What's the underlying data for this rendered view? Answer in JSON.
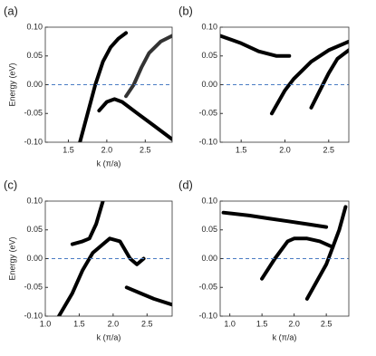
{
  "chart_data": [
    {
      "type": "line",
      "title": "(a)",
      "x_label": "k (π/a)",
      "y_label": "Energy (eV)",
      "xlim": [
        1.2,
        2.85
      ],
      "ylim": [
        -0.1,
        0.1
      ],
      "xticks": [
        {
          "value": 1.5,
          "label": "1.5"
        },
        {
          "value": 2,
          "label": "2.0"
        },
        {
          "value": 2.5,
          "label": "2.5"
        }
      ],
      "yticks": [
        {
          "value": -0.1,
          "label": "-0.10"
        },
        {
          "value": -0.05,
          "label": "-0.05"
        },
        {
          "value": 0,
          "label": "0.00"
        },
        {
          "value": 0.05,
          "label": "0.05"
        },
        {
          "value": 0.1,
          "label": "0.10"
        }
      ],
      "hline": 0,
      "hline_color": "#4a7cc4",
      "series": [
        {
          "color": "#000000",
          "x": [
            1.65,
            1.75,
            1.85,
            1.95,
            2.05,
            2.15,
            2.25
          ],
          "values": [
            -0.1,
            -0.05,
            0.0,
            0.04,
            0.065,
            0.08,
            0.09
          ]
        },
        {
          "color": "#000000",
          "x": [
            1.9,
            2.0,
            2.1,
            2.2,
            2.4,
            2.6,
            2.85
          ],
          "values": [
            -0.045,
            -0.03,
            -0.025,
            -0.03,
            -0.05,
            -0.07,
            -0.095
          ]
        },
        {
          "color": "#333333",
          "x": [
            2.25,
            2.35,
            2.45,
            2.55,
            2.7,
            2.85
          ],
          "values": [
            -0.02,
            0.0,
            0.03,
            0.055,
            0.075,
            0.085
          ]
        }
      ]
    },
    {
      "type": "line",
      "title": "(b)",
      "xlim": [
        1.26,
        2.73
      ],
      "ylim": [
        -0.1,
        0.1
      ],
      "xticks": [
        {
          "value": 1.5,
          "label": "1.5"
        },
        {
          "value": 2,
          "label": "2.0"
        },
        {
          "value": 2.5,
          "label": "2.5"
        }
      ],
      "yticks": [
        {
          "value": -0.1,
          "label": "-0.10"
        },
        {
          "value": -0.05,
          "label": "-0.05"
        },
        {
          "value": 0,
          "label": "0.00"
        },
        {
          "value": 0.05,
          "label": "0.05"
        },
        {
          "value": 0.1,
          "label": "0.10"
        }
      ],
      "hline": 0,
      "hline_color": "#4a7cc4",
      "series": [
        {
          "color": "#000000",
          "x": [
            1.26,
            1.5,
            1.7,
            1.9,
            2.05
          ],
          "values": [
            0.085,
            0.072,
            0.058,
            0.05,
            0.05
          ]
        },
        {
          "color": "#000000",
          "x": [
            1.85,
            2.0,
            2.1,
            2.3,
            2.5,
            2.73
          ],
          "values": [
            -0.05,
            -0.01,
            0.01,
            0.04,
            0.06,
            0.075
          ]
        },
        {
          "color": "#000000",
          "x": [
            2.3,
            2.4,
            2.5,
            2.6,
            2.73
          ],
          "values": [
            -0.04,
            -0.01,
            0.02,
            0.045,
            0.06
          ]
        }
      ]
    },
    {
      "type": "line",
      "title": "(c)",
      "x_label": "k (π/a)",
      "y_label": "Energy (eV)",
      "xlim": [
        1.0,
        2.87
      ],
      "ylim": [
        -0.1,
        0.1
      ],
      "xticks": [
        {
          "value": 1,
          "label": "1.0"
        },
        {
          "value": 1.5,
          "label": "1.5"
        },
        {
          "value": 2,
          "label": "2.0"
        },
        {
          "value": 2.5,
          "label": "2.5"
        }
      ],
      "yticks": [
        {
          "value": -0.1,
          "label": "-0.10"
        },
        {
          "value": -0.05,
          "label": "-0.05"
        },
        {
          "value": 0,
          "label": "0.00"
        },
        {
          "value": 0.05,
          "label": "0.05"
        },
        {
          "value": 0.1,
          "label": "0.10"
        }
      ],
      "hline": 0,
      "hline_color": "#4a7cc4",
      "series": [
        {
          "color": "#000000",
          "x": [
            1.2,
            1.4,
            1.55,
            1.7,
            1.85,
            1.95,
            2.1,
            2.25,
            2.35,
            2.45
          ],
          "values": [
            -0.1,
            -0.06,
            -0.02,
            0.01,
            0.025,
            0.035,
            0.03,
            0.0,
            -0.01,
            0.0
          ]
        },
        {
          "color": "#000000",
          "x": [
            1.4,
            1.55,
            1.65,
            1.75,
            1.85
          ],
          "values": [
            0.025,
            0.03,
            0.035,
            0.06,
            0.1
          ]
        },
        {
          "color": "#000000",
          "x": [
            2.2,
            2.4,
            2.6,
            2.87
          ],
          "values": [
            -0.05,
            -0.06,
            -0.07,
            -0.08
          ]
        }
      ]
    },
    {
      "type": "line",
      "title": "(d)",
      "x_label": "k (π/a)",
      "xlim": [
        0.85,
        2.85
      ],
      "ylim": [
        -0.1,
        0.1
      ],
      "xticks": [
        {
          "value": 1,
          "label": "1.0"
        },
        {
          "value": 1.5,
          "label": "1.5"
        },
        {
          "value": 2,
          "label": "2.0"
        },
        {
          "value": 2.5,
          "label": "2.5"
        }
      ],
      "yticks": [
        {
          "value": -0.1,
          "label": "-0.10"
        },
        {
          "value": -0.05,
          "label": "-0.05"
        },
        {
          "value": 0,
          "label": "0.00"
        },
        {
          "value": 0.05,
          "label": "0.05"
        },
        {
          "value": 0.1,
          "label": "0.10"
        }
      ],
      "hline": 0,
      "hline_color": "#4a7cc4",
      "series": [
        {
          "color": "#000000",
          "x": [
            1.5,
            1.7,
            1.9,
            2.0,
            2.2,
            2.4,
            2.6
          ],
          "values": [
            -0.035,
            0.0,
            0.03,
            0.035,
            0.035,
            0.03,
            0.02
          ]
        },
        {
          "color": "#000000",
          "x": [
            2.2,
            2.35,
            2.5,
            2.6,
            2.7,
            2.8
          ],
          "values": [
            -0.07,
            -0.04,
            -0.01,
            0.02,
            0.05,
            0.09
          ]
        },
        {
          "color": "#000000",
          "x": [
            0.9,
            1.3,
            1.6,
            1.9,
            2.2,
            2.5
          ],
          "values": [
            0.08,
            0.075,
            0.07,
            0.065,
            0.06,
            0.055
          ]
        }
      ]
    }
  ]
}
